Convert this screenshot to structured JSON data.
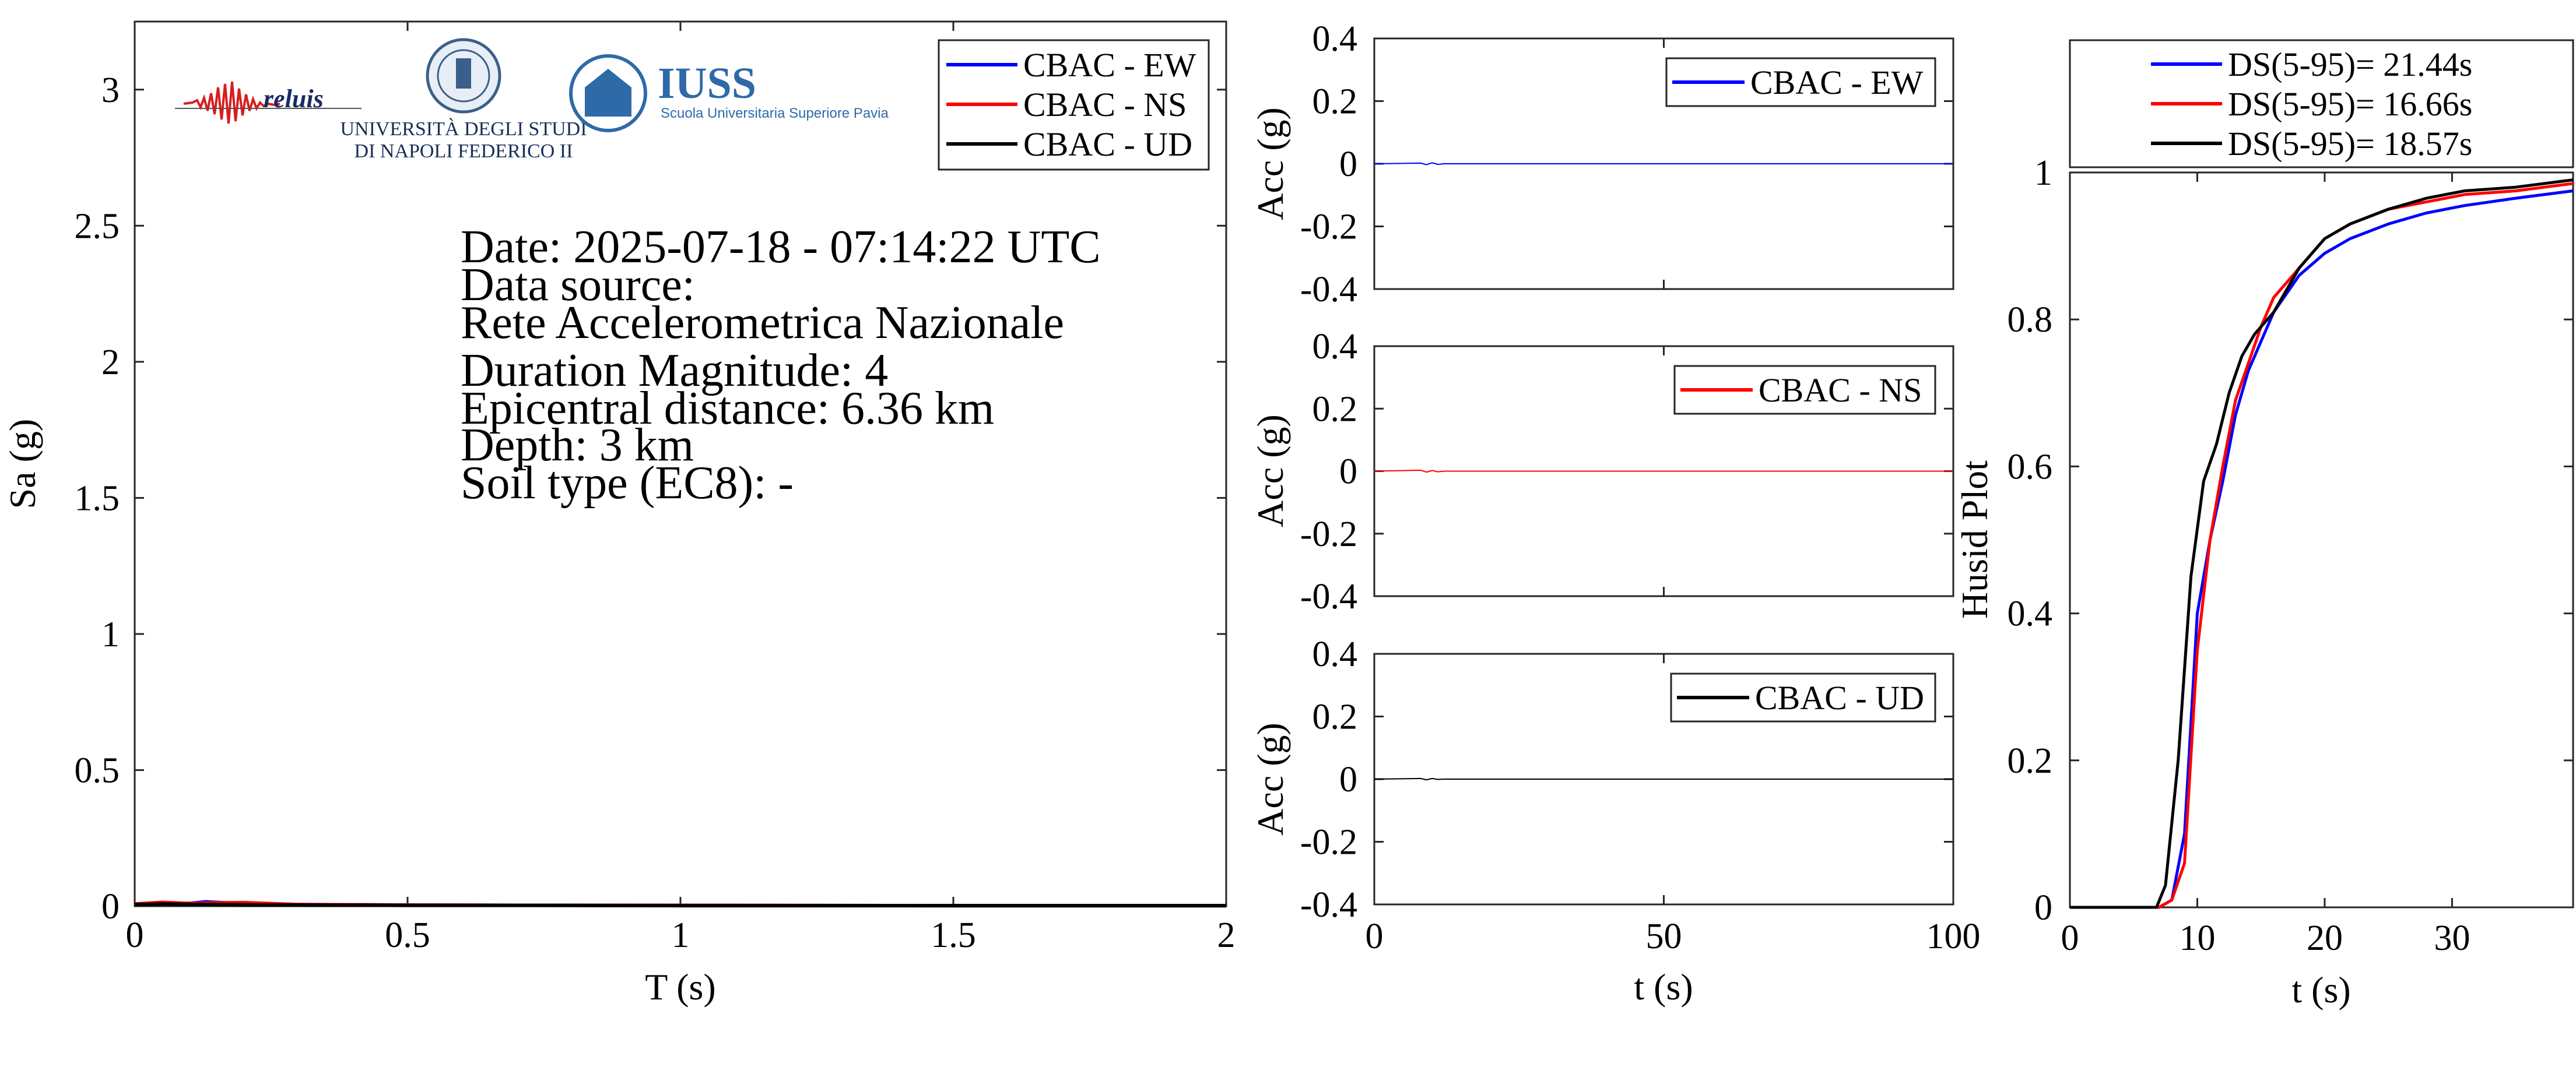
{
  "info": {
    "date": "Date: 2025-07-18 - 07:14:22 UTC",
    "source_label": "Data source:",
    "source": "Rete Accelerometrica Nazionale",
    "magnitude": "Duration Magnitude: 4",
    "distance": "Epicentral distance: 6.36 km",
    "depth": "Depth: 3 km",
    "soil": "Soil type (EC8): -"
  },
  "logos": {
    "reluis": "reluis",
    "unina_line1": "UNIVERSITÀ DEGLI STUDI",
    "unina_line2": "DI NAPOLI FEDERICO II",
    "iuss": "IUSS",
    "iuss_sub": "Scuola Universitaria Superiore Pavia"
  },
  "colors": {
    "ew": "#0000ff",
    "ns": "#ff0000",
    "ud": "#000000"
  },
  "chart_data": [
    {
      "id": "spectrum",
      "type": "line",
      "xlabel": "T (s)",
      "ylabel": "Sa (g)",
      "xlim": [
        0,
        2
      ],
      "ylim": [
        0,
        3.25
      ],
      "xticks": [
        0,
        0.5,
        1,
        1.5,
        2
      ],
      "xtick_labels": [
        "0",
        "0.5",
        "1",
        "1.5",
        "2"
      ],
      "yticks": [
        0,
        0.5,
        1,
        1.5,
        2,
        2.5,
        3
      ],
      "ytick_labels": [
        "0",
        "0.5",
        "1",
        "1.5",
        "2",
        "2.5",
        "3"
      ],
      "legend_position": "top-right",
      "series": [
        {
          "name": "CBAC - EW",
          "color": "#0000ff",
          "x": [
            0,
            0.05,
            0.1,
            0.13,
            0.2,
            0.3,
            0.5,
            0.8,
            1,
            1.5,
            2
          ],
          "y": [
            0.008,
            0.012,
            0.01,
            0.016,
            0.009,
            0.006,
            0.004,
            0.003,
            0.003,
            0.002,
            0.002
          ]
        },
        {
          "name": "CBAC - NS",
          "color": "#ff0000",
          "x": [
            0,
            0.05,
            0.1,
            0.15,
            0.2,
            0.3,
            0.5,
            0.8,
            1,
            1.5,
            2
          ],
          "y": [
            0.008,
            0.014,
            0.01,
            0.012,
            0.013,
            0.006,
            0.004,
            0.003,
            0.003,
            0.002,
            0.002
          ]
        },
        {
          "name": "CBAC - UD",
          "color": "#000000",
          "x": [
            0,
            0.05,
            0.1,
            0.15,
            0.2,
            0.3,
            0.5,
            0.8,
            1,
            1.5,
            2
          ],
          "y": [
            0.006,
            0.008,
            0.007,
            0.006,
            0.005,
            0.004,
            0.003,
            0.003,
            0.002,
            0.002,
            0.002
          ]
        }
      ]
    },
    {
      "id": "acc-ew",
      "type": "line",
      "xlabel": "",
      "ylabel": "Acc (g)",
      "xlim": [
        0,
        100
      ],
      "ylim": [
        -0.4,
        0.4
      ],
      "xticks": [
        0,
        50,
        100
      ],
      "xtick_labels": [],
      "yticks": [
        -0.4,
        -0.2,
        0,
        0.2,
        0.4
      ],
      "ytick_labels": [
        "-0.4",
        "-0.2",
        "0",
        "0.2",
        "0.4"
      ],
      "legend_position": "top-right",
      "series": [
        {
          "name": "CBAC - EW",
          "color": "#0000ff",
          "x": [
            0,
            8,
            9,
            10,
            11,
            12,
            100
          ],
          "y": [
            0,
            0.002,
            -0.003,
            0.003,
            -0.002,
            0,
            0
          ]
        }
      ]
    },
    {
      "id": "acc-ns",
      "type": "line",
      "xlabel": "",
      "ylabel": "Acc (g)",
      "xlim": [
        0,
        100
      ],
      "ylim": [
        -0.4,
        0.4
      ],
      "xticks": [
        0,
        50,
        100
      ],
      "xtick_labels": [],
      "yticks": [
        -0.4,
        -0.2,
        0,
        0.2,
        0.4
      ],
      "ytick_labels": [
        "-0.4",
        "-0.2",
        "0",
        "0.2",
        "0.4"
      ],
      "legend_position": "top-right",
      "series": [
        {
          "name": "CBAC - NS",
          "color": "#ff0000",
          "x": [
            0,
            8,
            9,
            10,
            11,
            12,
            100
          ],
          "y": [
            0,
            0.003,
            -0.003,
            0.002,
            -0.002,
            0,
            0
          ]
        }
      ]
    },
    {
      "id": "acc-ud",
      "type": "line",
      "xlabel": "t (s)",
      "ylabel": "Acc (g)",
      "xlim": [
        0,
        100
      ],
      "ylim": [
        -0.4,
        0.4
      ],
      "xticks": [
        0,
        50,
        100
      ],
      "xtick_labels": [
        "0",
        "50",
        "100"
      ],
      "yticks": [
        -0.4,
        -0.2,
        0,
        0.2,
        0.4
      ],
      "ytick_labels": [
        "-0.4",
        "-0.2",
        "0",
        "0.2",
        "0.4"
      ],
      "legend_position": "top-right",
      "series": [
        {
          "name": "CBAC - UD",
          "color": "#000000",
          "x": [
            0,
            8,
            9,
            10,
            11,
            12,
            100
          ],
          "y": [
            0,
            0.002,
            -0.002,
            0.002,
            -0.001,
            0,
            0
          ]
        }
      ]
    },
    {
      "id": "husid",
      "type": "line",
      "xlabel": "t (s)",
      "ylabel": "Husid Plot",
      "xlim": [
        0,
        39.5
      ],
      "ylim": [
        0,
        1
      ],
      "xticks": [
        0,
        10,
        20,
        30
      ],
      "xtick_labels": [
        "0",
        "10",
        "20",
        "30"
      ],
      "yticks": [
        0,
        0.2,
        0.4,
        0.6,
        0.8,
        1
      ],
      "ytick_labels": [
        "0",
        "0.2",
        "0.4",
        "0.6",
        "0.8",
        "1"
      ],
      "legend_position": "above",
      "series": [
        {
          "name": "DS(5-95)= 21.44s",
          "color": "#0000ff",
          "x": [
            0,
            7,
            8,
            9,
            10,
            11,
            12,
            13,
            14,
            15,
            16,
            18,
            20,
            22,
            25,
            28,
            31,
            35,
            39.5
          ],
          "y": [
            0,
            0,
            0.01,
            0.1,
            0.4,
            0.5,
            0.58,
            0.67,
            0.73,
            0.77,
            0.81,
            0.86,
            0.89,
            0.91,
            0.93,
            0.945,
            0.955,
            0.965,
            0.975
          ]
        },
        {
          "name": "DS(5-95)= 16.66s",
          "color": "#ff0000",
          "x": [
            0,
            7,
            8,
            9,
            10,
            11,
            12,
            13,
            14,
            15,
            16,
            18,
            20,
            22,
            25,
            28,
            31,
            35,
            39.5
          ],
          "y": [
            0,
            0,
            0.01,
            0.06,
            0.35,
            0.5,
            0.6,
            0.69,
            0.74,
            0.79,
            0.83,
            0.87,
            0.91,
            0.93,
            0.95,
            0.96,
            0.97,
            0.975,
            0.985
          ]
        },
        {
          "name": "DS(5-95)= 18.57s",
          "color": "#000000",
          "x": [
            0,
            6.8,
            7.5,
            8.5,
            9.5,
            10.5,
            11.5,
            12.5,
            13.5,
            14.5,
            16,
            18,
            20,
            22,
            25,
            28,
            31,
            35,
            39.5
          ],
          "y": [
            0,
            0,
            0.03,
            0.2,
            0.45,
            0.58,
            0.63,
            0.7,
            0.75,
            0.78,
            0.81,
            0.87,
            0.91,
            0.93,
            0.95,
            0.965,
            0.975,
            0.98,
            0.99
          ]
        }
      ]
    }
  ]
}
